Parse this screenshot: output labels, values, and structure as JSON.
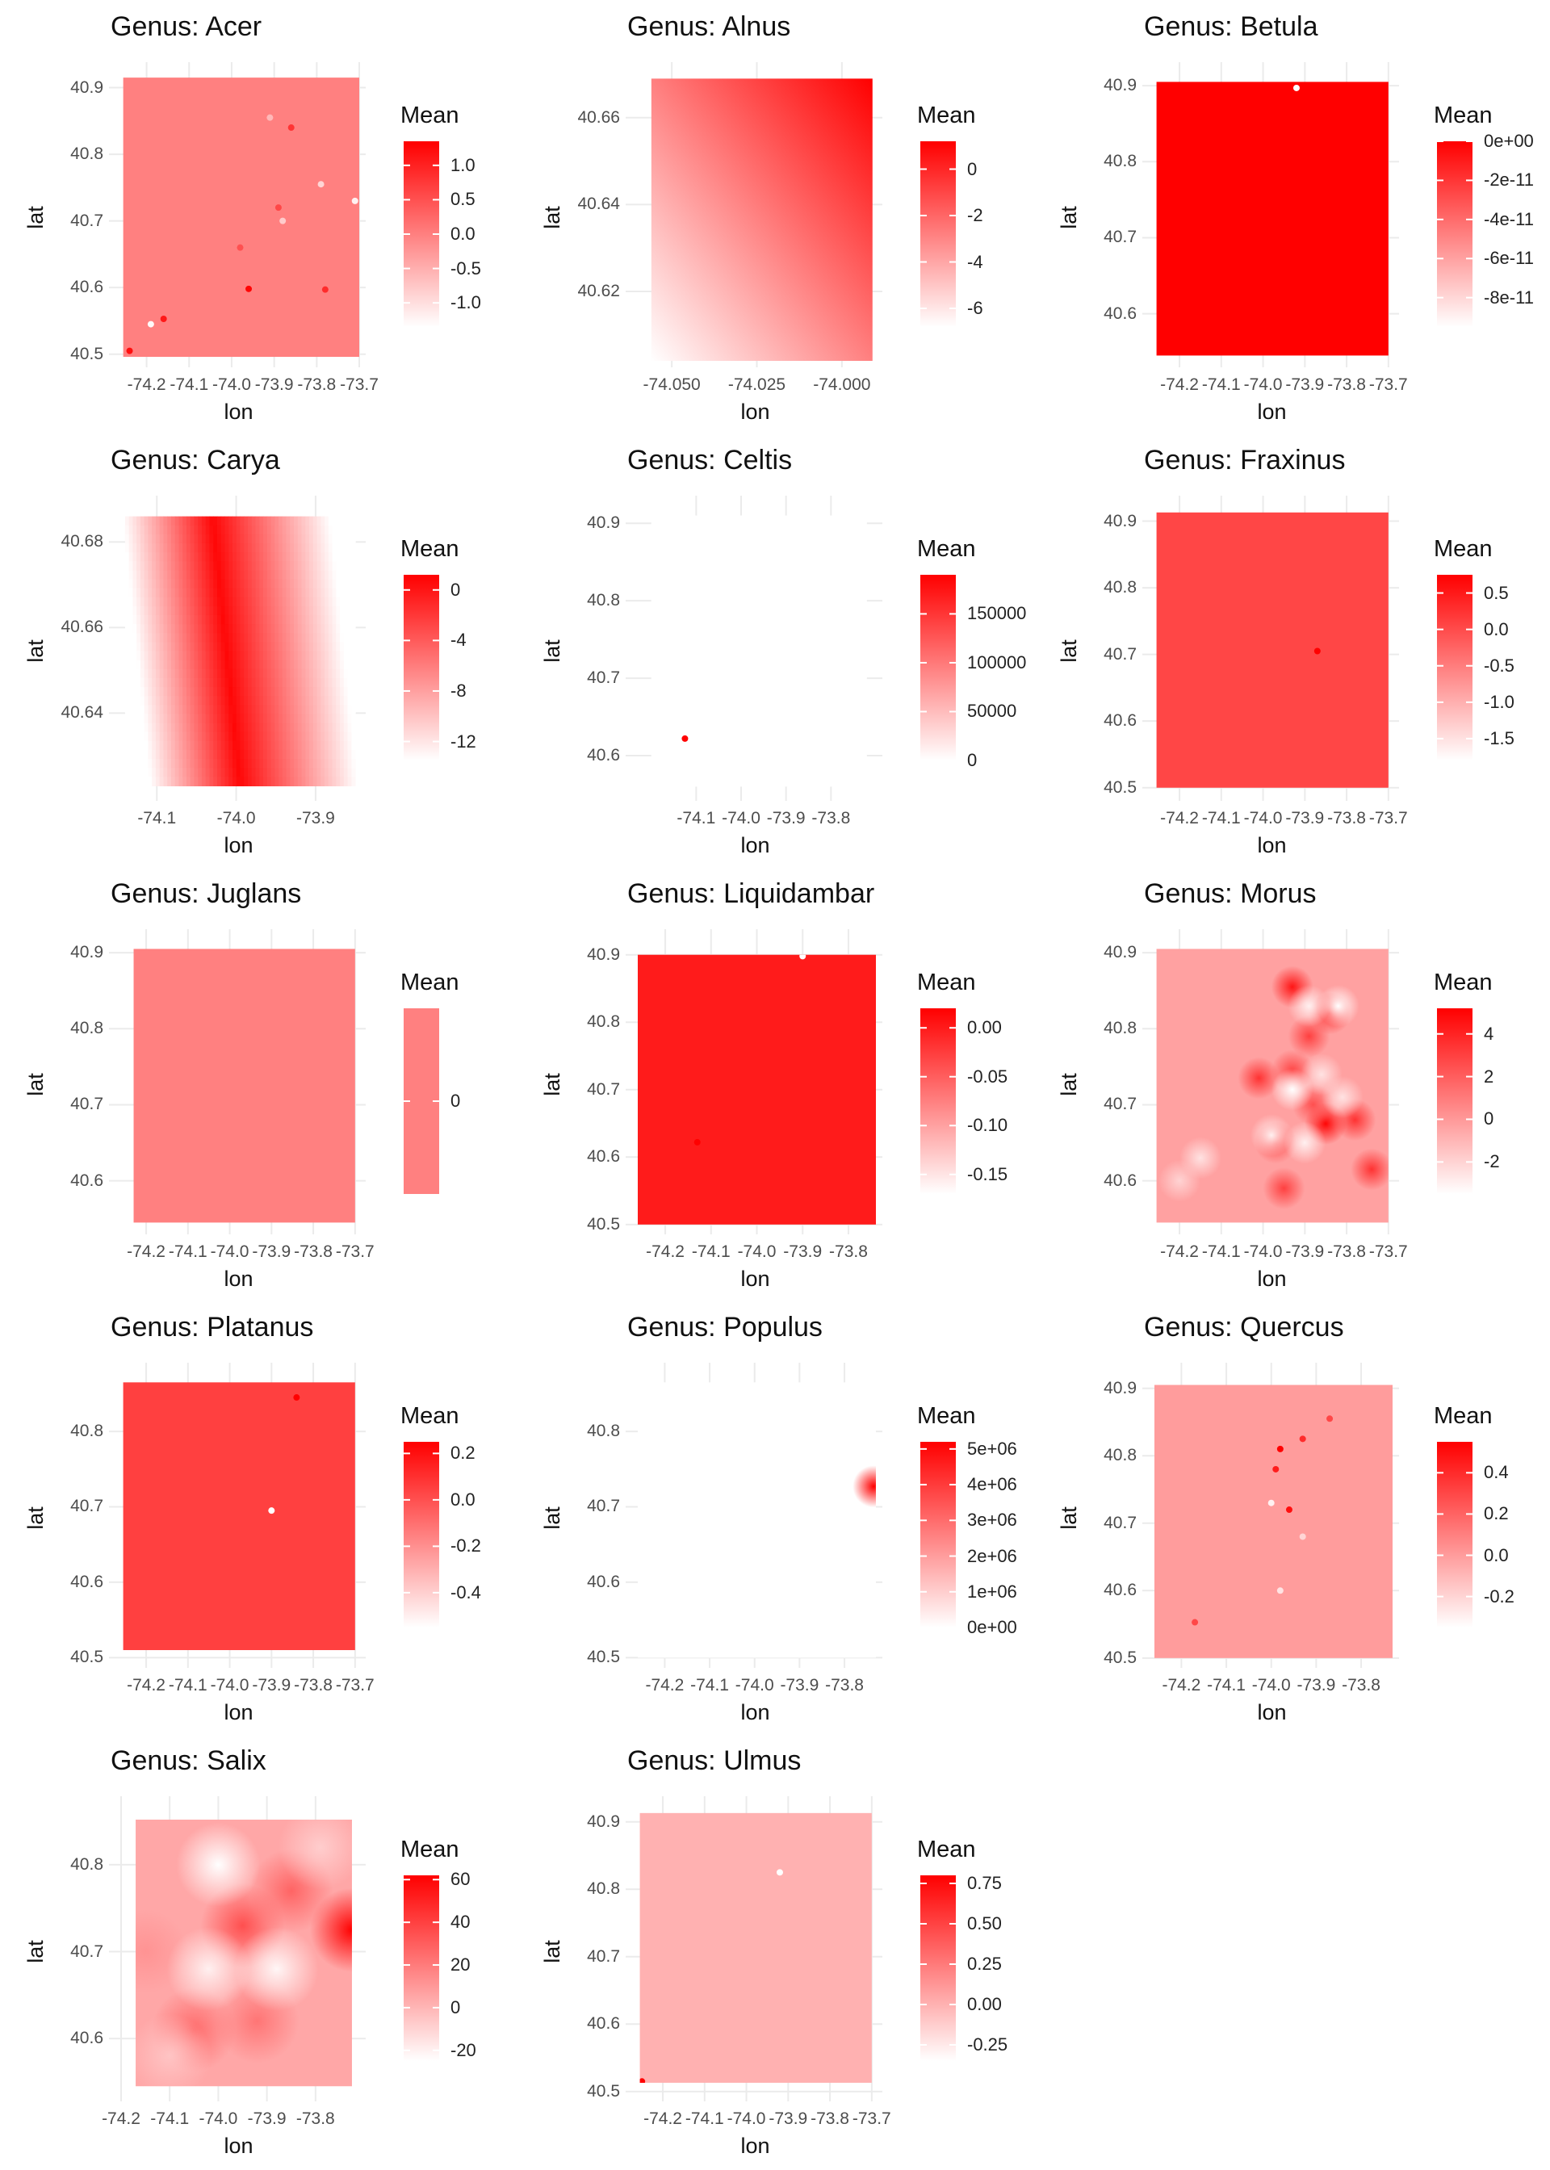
{
  "chart_data": [
    {
      "type": "heatmap",
      "title": "Genus: Acer",
      "xlabel": "lon",
      "ylabel": "lat",
      "x_ticks": [
        "-74.2",
        "-74.1",
        "-74.0",
        "-73.9",
        "-73.8",
        "-73.7"
      ],
      "y_ticks": [
        "40.5",
        "40.6",
        "40.7",
        "40.8",
        "40.9"
      ],
      "xlim": [
        -74.26,
        -73.7
      ],
      "ylim": [
        40.49,
        40.92
      ],
      "extent": {
        "x": [
          -74.255,
          -73.7
        ],
        "y": [
          40.496,
          40.915
        ]
      },
      "legend_title": "Mean",
      "legend_ticks": [
        "1.0",
        "0.5",
        "0.0",
        "-0.5",
        "-1.0"
      ],
      "legend_values": [
        1.0,
        0.5,
        0.0,
        -0.5,
        -1.0
      ],
      "value_range": [
        -1.35,
        1.35
      ],
      "field": {
        "kind": "flat",
        "value": 0.0
      },
      "spots": [
        {
          "lon": -73.96,
          "lat": 40.598,
          "v": 1.3
        },
        {
          "lon": -74.16,
          "lat": 40.553,
          "v": 1.1
        },
        {
          "lon": -74.24,
          "lat": 40.505,
          "v": 1.2
        },
        {
          "lon": -74.19,
          "lat": 40.545,
          "v": -1.3
        },
        {
          "lon": -73.78,
          "lat": 40.597,
          "v": 0.9
        },
        {
          "lon": -73.86,
          "lat": 40.84,
          "v": 0.8
        },
        {
          "lon": -73.89,
          "lat": 40.72,
          "v": 0.6
        },
        {
          "lon": -73.71,
          "lat": 40.73,
          "v": -1.2
        },
        {
          "lon": -73.79,
          "lat": 40.755,
          "v": -0.9
        },
        {
          "lon": -73.91,
          "lat": 40.855,
          "v": -0.6
        },
        {
          "lon": -73.88,
          "lat": 40.7,
          "v": -0.8
        },
        {
          "lon": -73.98,
          "lat": 40.66,
          "v": 0.5
        }
      ],
      "color_low": "#ffffff",
      "color_high": "#ff0000"
    },
    {
      "type": "heatmap",
      "title": "Genus: Alnus",
      "xlabel": "lon",
      "ylabel": "lat",
      "x_ticks": [
        "-74.050",
        "-74.025",
        "-74.000"
      ],
      "y_ticks": [
        "40.62",
        "40.64",
        "40.66"
      ],
      "xlim": [
        -74.06,
        -73.99
      ],
      "ylim": [
        40.604,
        40.67
      ],
      "extent": {
        "x": [
          -74.056,
          -73.991
        ],
        "y": [
          40.604,
          40.669
        ]
      },
      "legend_title": "Mean",
      "legend_ticks": [
        "0",
        "-2",
        "-4",
        "-6"
      ],
      "legend_values": [
        0,
        -2,
        -4,
        -6
      ],
      "value_range": [
        -6.8,
        1.2
      ],
      "field": {
        "kind": "ramp",
        "low": -6.8,
        "high": 1.2,
        "dir": [
          0.55,
          0.45
        ]
      },
      "spots": [],
      "color_low": "#ffffff",
      "color_high": "#ff0000"
    },
    {
      "type": "heatmap",
      "title": "Genus: Betula",
      "xlabel": "lon",
      "ylabel": "lat",
      "x_ticks": [
        "-74.2",
        "-74.1",
        "-74.0",
        "-73.9",
        "-73.8",
        "-73.7"
      ],
      "y_ticks": [
        "40.6",
        "40.7",
        "40.8",
        "40.9"
      ],
      "xlim": [
        -74.26,
        -73.69
      ],
      "ylim": [
        40.538,
        40.915
      ],
      "extent": {
        "x": [
          -74.255,
          -73.7
        ],
        "y": [
          40.545,
          40.905
        ]
      },
      "legend_title": "Mean",
      "legend_ticks": [
        "0e+00",
        "-2e-11",
        "-4e-11",
        "-6e-11",
        "-8e-11"
      ],
      "legend_values": [
        0,
        -2e-11,
        -4e-11,
        -6e-11,
        -8e-11
      ],
      "value_range": [
        -9.5e-11,
        0
      ],
      "field": {
        "kind": "flat",
        "value": 0
      },
      "spots": [
        {
          "lon": -73.92,
          "lat": 40.897,
          "v": -9.5e-11
        }
      ],
      "color_low": "#ffffff",
      "color_high": "#ff0000"
    },
    {
      "type": "heatmap",
      "title": "Genus: Carya",
      "xlabel": "lon",
      "ylabel": "lat",
      "x_ticks": [
        "-74.1",
        "-74.0",
        "-73.9"
      ],
      "y_ticks": [
        "40.64",
        "40.66",
        "40.68"
      ],
      "xlim": [
        -74.145,
        -73.845
      ],
      "ylim": [
        40.621,
        40.688
      ],
      "extent": {
        "x": [
          -74.14,
          -73.85
        ],
        "y": [
          40.623,
          40.686
        ]
      },
      "legend_title": "Mean",
      "legend_ticks": [
        "0",
        "-4",
        "-8",
        "-12"
      ],
      "legend_values": [
        0,
        -4,
        -8,
        -12
      ],
      "value_range": [
        -13.5,
        1.2
      ],
      "field": {
        "kind": "ridge",
        "peak": 0.8,
        "low": -13.5,
        "x0": -73.995,
        "x1": -74.03
      },
      "spots": [],
      "color_low": "#ffffff",
      "color_high": "#ff0000"
    },
    {
      "type": "heatmap",
      "title": "Genus: Celtis",
      "xlabel": "lon",
      "ylabel": "lat",
      "x_ticks": [
        "-74.1",
        "-74.0",
        "-73.9",
        "-73.8"
      ],
      "y_ticks": [
        "40.6",
        "40.7",
        "40.8",
        "40.9"
      ],
      "xlim": [
        -74.23,
        -73.7
      ],
      "ylim": [
        40.55,
        40.92
      ],
      "extent": {
        "x": [
          -74.2,
          -73.72
        ],
        "y": [
          40.56,
          40.91
        ]
      },
      "legend_title": "Mean",
      "legend_ticks": [
        "150000",
        "100000",
        "50000",
        "0"
      ],
      "legend_values": [
        150000,
        100000,
        50000,
        0
      ],
      "value_range": [
        0,
        190000
      ],
      "field": {
        "kind": "flat",
        "value": 0
      },
      "spots": [
        {
          "lon": -74.125,
          "lat": 40.622,
          "v": 190000
        }
      ],
      "color_low": "#ffffff",
      "color_high": "#ff0000"
    },
    {
      "type": "heatmap",
      "title": "Genus: Fraxinus",
      "xlabel": "lon",
      "ylabel": "lat",
      "x_ticks": [
        "-74.2",
        "-74.1",
        "-74.0",
        "-73.9",
        "-73.8",
        "-73.7"
      ],
      "y_ticks": [
        "40.5",
        "40.6",
        "40.7",
        "40.8",
        "40.9"
      ],
      "xlim": [
        -74.26,
        -73.69
      ],
      "ylim": [
        40.49,
        40.92
      ],
      "extent": {
        "x": [
          -74.255,
          -73.7
        ],
        "y": [
          40.5,
          40.913
        ]
      },
      "legend_title": "Mean",
      "legend_ticks": [
        "0.5",
        "0.0",
        "-0.5",
        "-1.0",
        "-1.5"
      ],
      "legend_values": [
        0.5,
        0.0,
        -0.5,
        -1.0,
        -1.5
      ],
      "value_range": [
        -1.8,
        0.75
      ],
      "field": {
        "kind": "flat",
        "value": 0.05
      },
      "spots": [
        {
          "lon": -73.87,
          "lat": 40.705,
          "v": 0.75
        }
      ],
      "color_low": "#ffffff",
      "color_high": "#ff0000"
    },
    {
      "type": "heatmap",
      "title": "Genus: Juglans",
      "xlabel": "lon",
      "ylabel": "lat",
      "x_ticks": [
        "-74.2",
        "-74.1",
        "-74.0",
        "-73.9",
        "-73.8",
        "-73.7"
      ],
      "y_ticks": [
        "40.6",
        "40.7",
        "40.8",
        "40.9"
      ],
      "xlim": [
        -74.26,
        -73.69
      ],
      "ylim": [
        40.538,
        40.915
      ],
      "extent": {
        "x": [
          -74.23,
          -73.7
        ],
        "y": [
          40.545,
          40.905
        ]
      },
      "legend_title": "Mean",
      "legend_ticks": [
        "0"
      ],
      "legend_values": [
        0
      ],
      "value_range": [
        -1,
        1
      ],
      "field": {
        "kind": "flat",
        "value": 0
      },
      "spots": [],
      "color_low": "#ffffff",
      "color_high": "#ff0000"
    },
    {
      "type": "heatmap",
      "title": "Genus: Liquidambar",
      "xlabel": "lon",
      "ylabel": "lat",
      "x_ticks": [
        "-74.2",
        "-74.1",
        "-74.0",
        "-73.9",
        "-73.8"
      ],
      "y_ticks": [
        "40.5",
        "40.6",
        "40.7",
        "40.8",
        "40.9"
      ],
      "xlim": [
        -74.26,
        -73.74
      ],
      "ylim": [
        40.495,
        40.92
      ],
      "extent": {
        "x": [
          -74.26,
          -73.74
        ],
        "y": [
          40.5,
          40.9
        ]
      },
      "legend_title": "Mean",
      "legend_ticks": [
        "0.00",
        "-0.05",
        "-0.10",
        "-0.15"
      ],
      "legend_values": [
        0,
        -0.05,
        -0.1,
        -0.15
      ],
      "value_range": [
        -0.17,
        0.02
      ],
      "field": {
        "kind": "flat",
        "value": 0.0
      },
      "spots": [
        {
          "lon": -74.13,
          "lat": 40.622,
          "v": 0.02
        },
        {
          "lon": -73.9,
          "lat": 40.898,
          "v": -0.17
        }
      ],
      "color_low": "#ffffff",
      "color_high": "#ff0000"
    },
    {
      "type": "heatmap",
      "title": "Genus: Morus",
      "xlabel": "lon",
      "ylabel": "lat",
      "x_ticks": [
        "-74.2",
        "-74.1",
        "-74.0",
        "-73.9",
        "-73.8",
        "-73.7"
      ],
      "y_ticks": [
        "40.6",
        "40.7",
        "40.8",
        "40.9"
      ],
      "xlim": [
        -74.26,
        -73.69
      ],
      "ylim": [
        40.538,
        40.915
      ],
      "extent": {
        "x": [
          -74.255,
          -73.7
        ],
        "y": [
          40.545,
          40.905
        ]
      },
      "legend_title": "Mean",
      "legend_ticks": [
        "4",
        "2",
        "0",
        "-2"
      ],
      "legend_values": [
        4,
        2,
        0,
        -2
      ],
      "value_range": [
        -3.5,
        5.2
      ],
      "field": {
        "kind": "flat",
        "value": -0.3
      },
      "spots": [
        {
          "lon": -73.93,
          "lat": 40.855,
          "v": 4.5
        },
        {
          "lon": -73.84,
          "lat": 40.82,
          "v": 3.5
        },
        {
          "lon": -73.89,
          "lat": 40.79,
          "v": 3.0
        },
        {
          "lon": -74.01,
          "lat": 40.735,
          "v": 3.5
        },
        {
          "lon": -73.93,
          "lat": 40.745,
          "v": 2.8
        },
        {
          "lon": -73.85,
          "lat": 40.675,
          "v": 5.0
        },
        {
          "lon": -73.78,
          "lat": 40.68,
          "v": 3.5
        },
        {
          "lon": -73.88,
          "lat": 40.7,
          "v": 2.5
        },
        {
          "lon": -73.95,
          "lat": 40.59,
          "v": 3.0
        },
        {
          "lon": -73.74,
          "lat": 40.615,
          "v": 3.5
        },
        {
          "lon": -73.97,
          "lat": 40.65,
          "v": 2.5
        },
        {
          "lon": -73.82,
          "lat": 40.83,
          "v": -3.5
        },
        {
          "lon": -73.89,
          "lat": 40.83,
          "v": -3.0
        },
        {
          "lon": -73.93,
          "lat": 40.72,
          "v": -3.5
        },
        {
          "lon": -73.98,
          "lat": 40.66,
          "v": -3.0
        },
        {
          "lon": -73.9,
          "lat": 40.65,
          "v": -3.0
        },
        {
          "lon": -73.81,
          "lat": 40.71,
          "v": -2.5
        },
        {
          "lon": -74.15,
          "lat": 40.63,
          "v": -2.5
        },
        {
          "lon": -74.2,
          "lat": 40.6,
          "v": -2.0
        },
        {
          "lon": -73.86,
          "lat": 40.74,
          "v": -2.5
        }
      ],
      "color_low": "#ffffff",
      "color_high": "#ff0000"
    },
    {
      "type": "heatmap",
      "title": "Genus: Platanus",
      "xlabel": "lon",
      "ylabel": "lat",
      "x_ticks": [
        "-74.2",
        "-74.1",
        "-74.0",
        "-73.9",
        "-73.8",
        "-73.7"
      ],
      "y_ticks": [
        "40.5",
        "40.6",
        "40.7",
        "40.8"
      ],
      "xlim": [
        -74.26,
        -73.69
      ],
      "ylim": [
        40.495,
        40.875
      ],
      "extent": {
        "x": [
          -74.255,
          -73.7
        ],
        "y": [
          40.51,
          40.865
        ]
      },
      "legend_title": "Mean",
      "legend_ticks": [
        "0.2",
        "0.0",
        "-0.2",
        "-0.4"
      ],
      "legend_values": [
        0.2,
        0.0,
        -0.2,
        -0.4
      ],
      "value_range": [
        -0.55,
        0.25
      ],
      "field": {
        "kind": "flat",
        "value": 0.05
      },
      "spots": [
        {
          "lon": -73.84,
          "lat": 40.845,
          "v": 0.25
        },
        {
          "lon": -73.9,
          "lat": 40.695,
          "v": -0.55
        }
      ],
      "color_low": "#ffffff",
      "color_high": "#ff0000"
    },
    {
      "type": "heatmap",
      "title": "Genus: Populus",
      "xlabel": "lon",
      "ylabel": "lat",
      "x_ticks": [
        "-74.2",
        "-74.1",
        "-74.0",
        "-73.9",
        "-73.8"
      ],
      "y_ticks": [
        "40.5",
        "40.6",
        "40.7",
        "40.8"
      ],
      "xlim": [
        -74.26,
        -73.73
      ],
      "ylim": [
        40.495,
        40.875
      ],
      "extent": {
        "x": [
          -74.26,
          -73.73
        ],
        "y": [
          40.5,
          40.865
        ]
      },
      "legend_title": "Mean",
      "legend_ticks": [
        "5e+06",
        "4e+06",
        "3e+06",
        "2e+06",
        "1e+06",
        "0e+00"
      ],
      "legend_values": [
        5000000,
        4000000,
        3000000,
        2000000,
        1000000,
        0
      ],
      "value_range": [
        0,
        5200000
      ],
      "field": {
        "kind": "flat",
        "value": 0
      },
      "spots": [
        {
          "lon": -73.735,
          "lat": 40.727,
          "v": 5200000
        }
      ],
      "color_low": "#ffffff",
      "color_high": "#ff0000"
    },
    {
      "type": "heatmap",
      "title": "Genus: Quercus",
      "xlabel": "lon",
      "ylabel": "lat",
      "x_ticks": [
        "-74.2",
        "-74.1",
        "-74.0",
        "-73.9",
        "-73.8"
      ],
      "y_ticks": [
        "40.5",
        "40.6",
        "40.7",
        "40.8",
        "40.9"
      ],
      "xlim": [
        -74.26,
        -73.73
      ],
      "ylim": [
        40.495,
        40.92
      ],
      "extent": {
        "x": [
          -74.26,
          -73.73
        ],
        "y": [
          40.5,
          40.905
        ]
      },
      "legend_title": "Mean",
      "legend_ticks": [
        "0.4",
        "0.2",
        "0.0",
        "-0.2"
      ],
      "legend_values": [
        0.4,
        0.2,
        0.0,
        -0.2
      ],
      "value_range": [
        -0.35,
        0.55
      ],
      "field": {
        "kind": "flat",
        "value": 0.0
      },
      "spots": [
        {
          "lon": -73.98,
          "lat": 40.81,
          "v": 0.55
        },
        {
          "lon": -73.96,
          "lat": 40.72,
          "v": 0.5
        },
        {
          "lon": -73.99,
          "lat": 40.78,
          "v": 0.45
        },
        {
          "lon": -73.93,
          "lat": 40.825,
          "v": 0.4
        },
        {
          "lon": -74.17,
          "lat": 40.553,
          "v": 0.3
        },
        {
          "lon": -73.87,
          "lat": 40.855,
          "v": 0.3
        },
        {
          "lon": -74.0,
          "lat": 40.73,
          "v": -0.3
        },
        {
          "lon": -73.98,
          "lat": 40.6,
          "v": -0.25
        },
        {
          "lon": -73.93,
          "lat": 40.68,
          "v": -0.2
        }
      ],
      "color_low": "#ffffff",
      "color_high": "#ff0000"
    },
    {
      "type": "heatmap",
      "title": "Genus: Salix",
      "xlabel": "lon",
      "ylabel": "lat",
      "x_ticks": [
        "-74.2",
        "-74.1",
        "-74.0",
        "-73.9",
        "-73.8"
      ],
      "y_ticks": [
        "40.6",
        "40.7",
        "40.8"
      ],
      "xlim": [
        -74.2,
        -73.71
      ],
      "ylim": [
        40.535,
        40.865
      ],
      "extent": {
        "x": [
          -74.17,
          -73.725
        ],
        "y": [
          40.545,
          40.852
        ]
      },
      "legend_title": "Mean",
      "legend_ticks": [
        "60",
        "40",
        "20",
        "0",
        "-20"
      ],
      "legend_values": [
        60,
        40,
        20,
        0,
        -20
      ],
      "value_range": [
        -25,
        62
      ],
      "field": {
        "kind": "flat",
        "value": 5
      },
      "spots": [
        {
          "lon": -73.725,
          "lat": 40.725,
          "v": 62
        },
        {
          "lon": -73.95,
          "lat": 40.73,
          "v": 35
        },
        {
          "lon": -73.85,
          "lat": 40.77,
          "v": 28
        },
        {
          "lon": -74.05,
          "lat": 40.61,
          "v": 25
        },
        {
          "lon": -73.92,
          "lat": 40.62,
          "v": 22
        },
        {
          "lon": -74.15,
          "lat": 40.7,
          "v": 12
        },
        {
          "lon": -74.0,
          "lat": 40.8,
          "v": -25
        },
        {
          "lon": -74.02,
          "lat": 40.68,
          "v": -20
        },
        {
          "lon": -73.88,
          "lat": 40.68,
          "v": -22
        },
        {
          "lon": -73.79,
          "lat": 40.82,
          "v": -8
        },
        {
          "lon": -74.1,
          "lat": 40.58,
          "v": -5
        }
      ],
      "color_low": "#ffffff",
      "color_high": "#ff0000"
    },
    {
      "type": "heatmap",
      "title": "Genus: Ulmus",
      "xlabel": "lon",
      "ylabel": "lat",
      "x_ticks": [
        "-74.2",
        "-74.1",
        "-74.0",
        "-73.9",
        "-73.8",
        "-73.7"
      ],
      "y_ticks": [
        "40.5",
        "40.6",
        "40.7",
        "40.8",
        "40.9"
      ],
      "xlim": [
        -74.26,
        -73.69
      ],
      "ylim": [
        40.495,
        40.92
      ],
      "extent": {
        "x": [
          -74.255,
          -73.7
        ],
        "y": [
          40.513,
          40.913
        ]
      },
      "legend_title": "Mean",
      "legend_ticks": [
        "0.75",
        "0.50",
        "0.25",
        "0.00",
        "-0.25"
      ],
      "legend_values": [
        0.75,
        0.5,
        0.25,
        0.0,
        -0.25
      ],
      "value_range": [
        -0.35,
        0.8
      ],
      "field": {
        "kind": "flat",
        "value": 0.0
      },
      "spots": [
        {
          "lon": -74.25,
          "lat": 40.515,
          "v": 0.8
        },
        {
          "lon": -73.92,
          "lat": 40.825,
          "v": -0.35
        }
      ],
      "color_low": "#ffffff",
      "color_high": "#ff0000"
    }
  ]
}
